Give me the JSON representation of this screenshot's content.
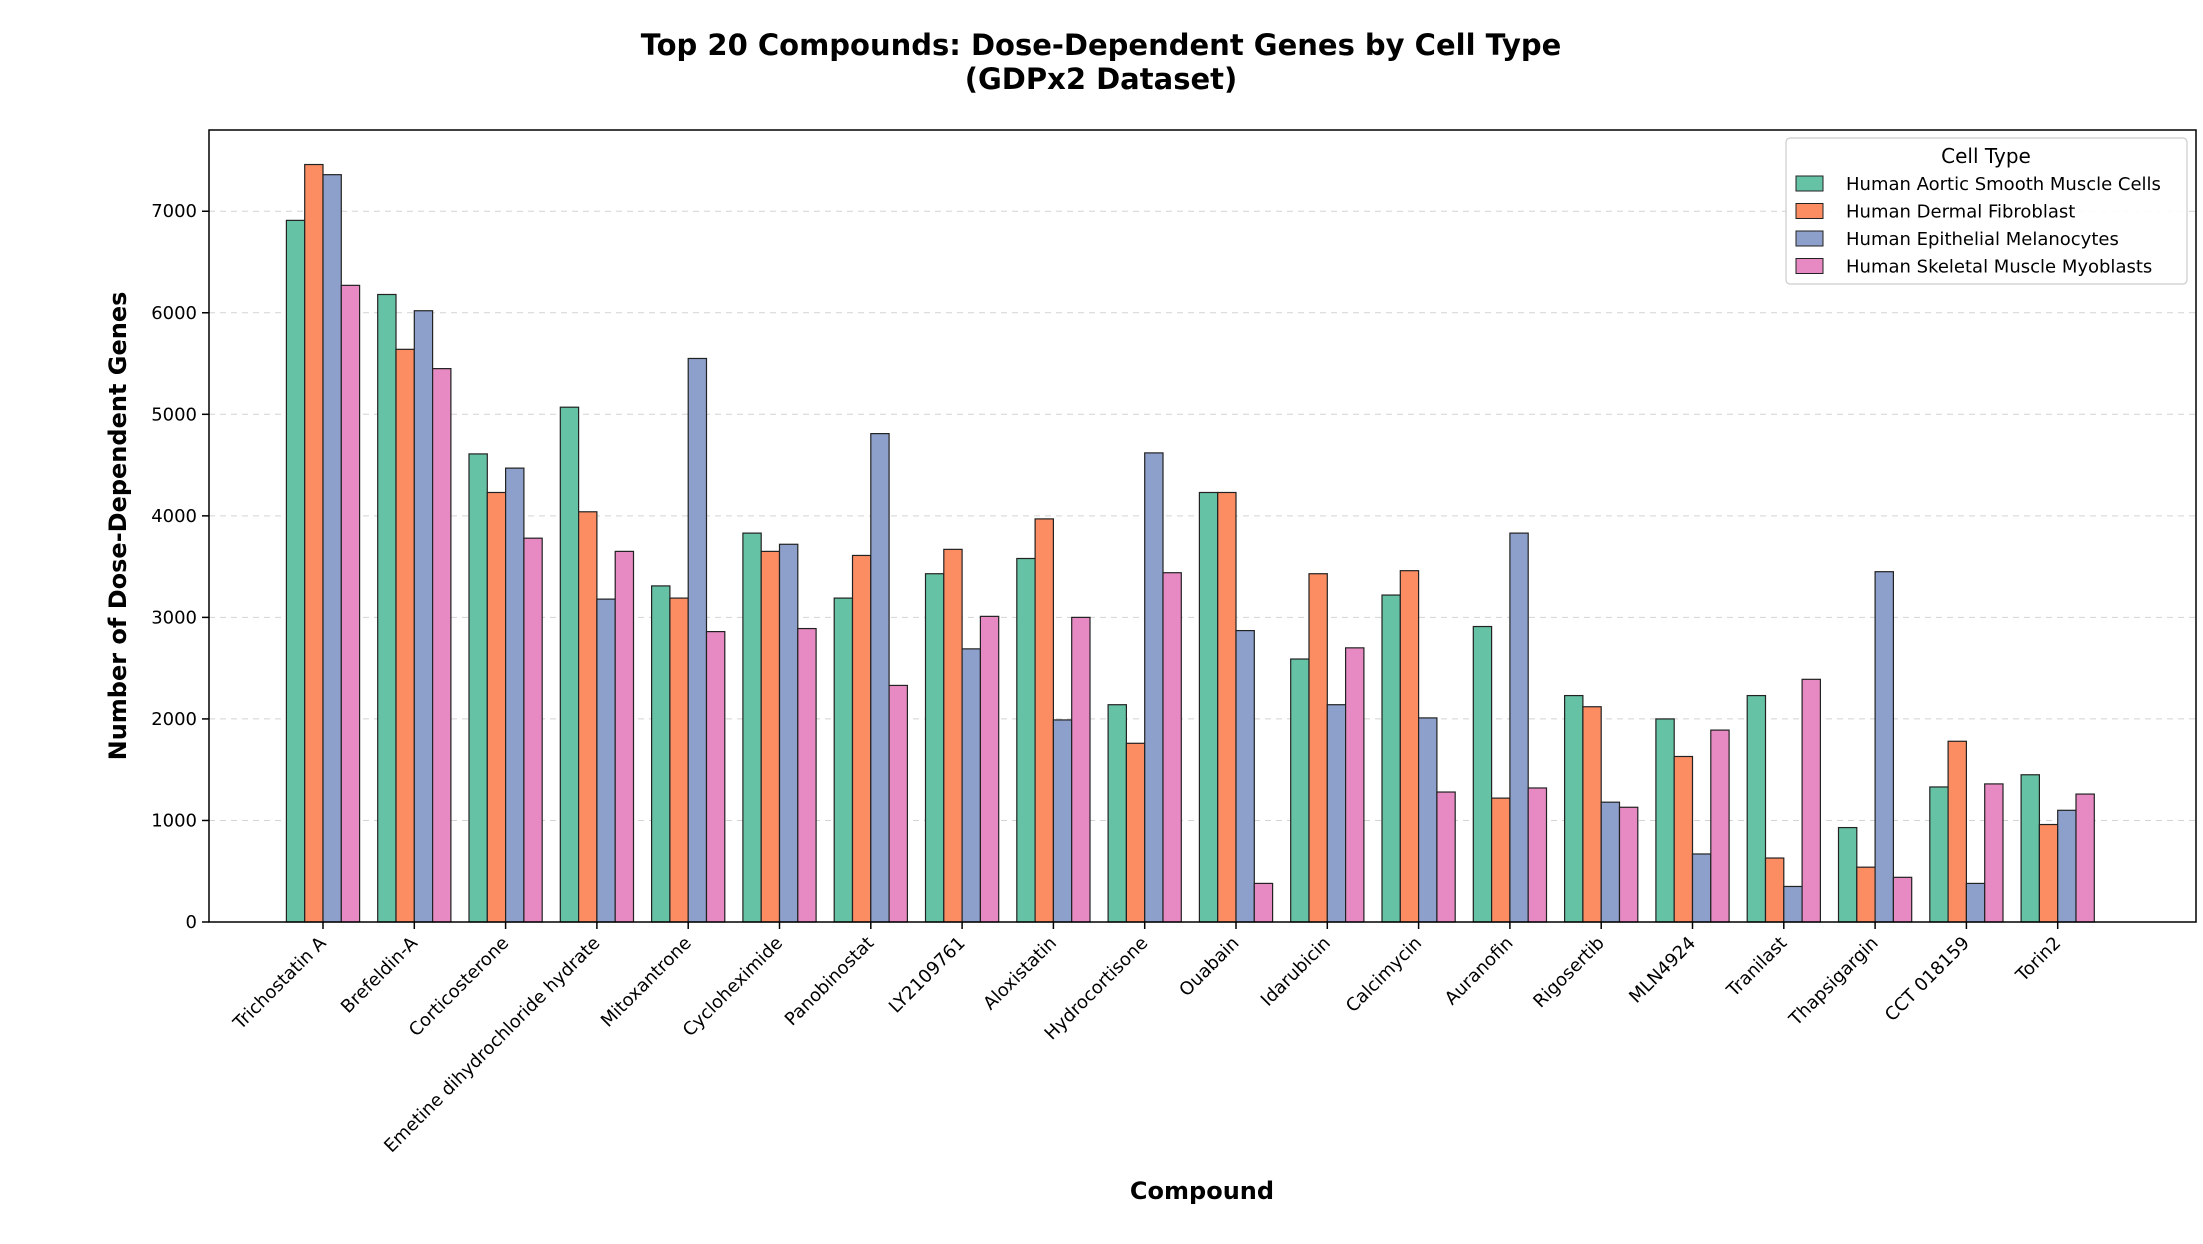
{
  "chart_data": {
    "type": "bar",
    "title": "Top 20 Compounds: Dose-Dependent Genes by Cell Type",
    "subtitle": "(GDPx2 Dataset)",
    "xlabel": "Compound",
    "ylabel": "Number of Dose-Dependent Genes",
    "ylim": [
      0,
      7800
    ],
    "yticks": [
      "0",
      "1000",
      "2000",
      "3000",
      "4000",
      "5000",
      "6000",
      "7000"
    ],
    "grid": "y-dashed",
    "legend": {
      "title": "Cell Type",
      "placement": "top-right"
    },
    "categories": [
      "Trichostatin A",
      "Brefeldin-A",
      "Corticosterone",
      "Emetine dihydrochloride hydrate",
      "Mitoxantrone",
      "Cycloheximide",
      "Panobinostat",
      "LY2109761",
      "Aloxistatin",
      "Hydrocortisone",
      "Ouabain",
      "Idarubicin",
      "Calcimycin",
      "Auranofin",
      "Rigosertib",
      "MLN4924",
      "Tranilast",
      "Thapsigargin",
      "CCT 018159",
      "Torin2"
    ],
    "series": [
      {
        "name": "Human Aortic Smooth Muscle Cells",
        "color": "#66c2a5",
        "values": [
          6910,
          6180,
          4610,
          5070,
          3310,
          3830,
          3190,
          3430,
          3580,
          2140,
          4230,
          2590,
          3220,
          2910,
          2230,
          2000,
          2230,
          930,
          1330,
          1450
        ]
      },
      {
        "name": "Human Dermal Fibroblast",
        "color": "#fc8d62",
        "values": [
          7460,
          5640,
          4230,
          4040,
          3190,
          3650,
          3610,
          3670,
          3970,
          1760,
          4230,
          3430,
          3460,
          1220,
          2120,
          1630,
          630,
          540,
          1780,
          960
        ]
      },
      {
        "name": "Human Epithelial Melanocytes",
        "color": "#8da0cb",
        "values": [
          7360,
          6020,
          4470,
          3180,
          5550,
          3720,
          4810,
          2690,
          1990,
          4620,
          2870,
          2140,
          2010,
          3830,
          1180,
          670,
          350,
          3450,
          380,
          1100
        ]
      },
      {
        "name": "Human Skeletal Muscle Myoblasts",
        "color": "#e78ac3",
        "values": [
          6270,
          5450,
          3780,
          3650,
          2860,
          2890,
          2330,
          3010,
          3000,
          3440,
          380,
          2700,
          1280,
          1320,
          1130,
          1890,
          2390,
          440,
          1360,
          1260
        ]
      }
    ]
  }
}
